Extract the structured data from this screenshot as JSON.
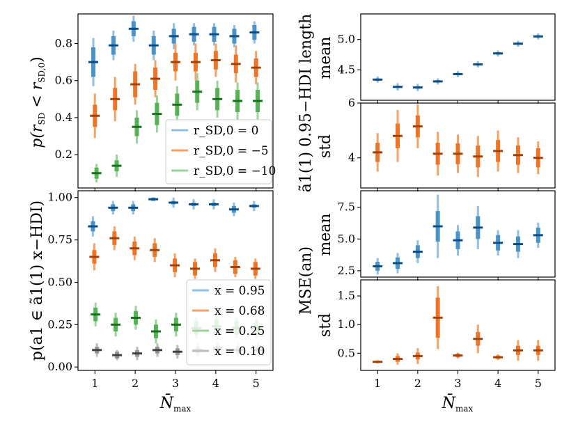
{
  "chart_data": [
    {
      "id": "A",
      "type": "scatter",
      "title": "",
      "xlabel": "",
      "ylabel": "p(r_SD < r_SD,0)",
      "ylim": [
        0.02,
        0.96
      ],
      "yticks": [
        0.2,
        0.4,
        0.6,
        0.8
      ],
      "ytick_labels": [
        "0.2",
        "0.4",
        "0.6",
        "0.8"
      ],
      "x": [
        1,
        1.5,
        2,
        2.5,
        3,
        3.5,
        4,
        4.5,
        5
      ],
      "series": [
        {
          "name": "r_SD,0 = 0",
          "color_key": "blue",
          "values": [
            0.7,
            0.79,
            0.88,
            0.79,
            0.84,
            0.85,
            0.85,
            0.84,
            0.86
          ],
          "inner": [
            0.08,
            0.05,
            0.04,
            0.05,
            0.04,
            0.04,
            0.04,
            0.04,
            0.04
          ],
          "outer": [
            0.13,
            0.08,
            0.07,
            0.08,
            0.07,
            0.06,
            0.06,
            0.06,
            0.06
          ]
        },
        {
          "name": "r_SD,0 = -5",
          "color_key": "orange",
          "values": [
            0.41,
            0.5,
            0.58,
            0.61,
            0.7,
            0.7,
            0.71,
            0.69,
            0.67
          ],
          "inner": [
            0.06,
            0.06,
            0.07,
            0.06,
            0.05,
            0.05,
            0.05,
            0.05,
            0.05
          ],
          "outer": [
            0.12,
            0.12,
            0.11,
            0.1,
            0.1,
            0.1,
            0.09,
            0.1,
            0.09
          ]
        },
        {
          "name": "r_SD,0 = -10",
          "color_key": "green",
          "values": [
            0.1,
            0.14,
            0.35,
            0.42,
            0.47,
            0.54,
            0.5,
            0.49,
            0.49
          ],
          "inner": [
            0.03,
            0.03,
            0.05,
            0.06,
            0.06,
            0.06,
            0.06,
            0.06,
            0.06
          ],
          "outer": [
            0.05,
            0.06,
            0.09,
            0.1,
            0.1,
            0.1,
            0.1,
            0.1,
            0.1
          ]
        }
      ]
    },
    {
      "id": "C",
      "type": "scatter",
      "xlabel": "N̄max",
      "ylabel": "p(a1 ∈ ã1(1) x−HDI)",
      "ylim": [
        -0.02,
        1.04
      ],
      "yticks": [
        0.0,
        0.25,
        0.5,
        0.75,
        1.0
      ],
      "ytick_labels": [
        "0.00",
        "0.25",
        "0.50",
        "0.75",
        "1.00"
      ],
      "xticks": [
        1,
        2,
        3,
        4,
        5
      ],
      "x": [
        1,
        1.5,
        2,
        2.5,
        3,
        3.5,
        4,
        4.5,
        5
      ],
      "series": [
        {
          "name": "x = 0.95",
          "color_key": "blue",
          "values": [
            0.83,
            0.94,
            0.94,
            0.99,
            0.97,
            0.96,
            0.96,
            0.93,
            0.95
          ],
          "inner": [
            0.03,
            0.02,
            0.02,
            0.01,
            0.01,
            0.01,
            0.01,
            0.02,
            0.01
          ],
          "outer": [
            0.06,
            0.04,
            0.04,
            0.01,
            0.03,
            0.03,
            0.03,
            0.04,
            0.03
          ]
        },
        {
          "name": "x = 0.68",
          "color_key": "orange",
          "values": [
            0.65,
            0.76,
            0.7,
            0.69,
            0.6,
            0.58,
            0.63,
            0.59,
            0.58
          ],
          "inner": [
            0.04,
            0.04,
            0.04,
            0.04,
            0.04,
            0.04,
            0.04,
            0.04,
            0.04
          ],
          "outer": [
            0.08,
            0.07,
            0.07,
            0.07,
            0.07,
            0.06,
            0.07,
            0.06,
            0.06
          ]
        },
        {
          "name": "x = 0.25",
          "color_key": "green",
          "values": [
            0.31,
            0.25,
            0.29,
            0.21,
            0.25,
            0.23,
            0.24,
            0.23,
            0.23
          ],
          "inner": [
            0.04,
            0.04,
            0.04,
            0.04,
            0.04,
            0.04,
            0.04,
            0.04,
            0.04
          ],
          "outer": [
            0.07,
            0.07,
            0.07,
            0.07,
            0.07,
            0.06,
            0.06,
            0.06,
            0.06
          ]
        },
        {
          "name": "x = 0.10",
          "color_key": "gray",
          "values": [
            0.1,
            0.07,
            0.08,
            0.1,
            0.09,
            0.1,
            0.11,
            0.1,
            0.1
          ],
          "inner": [
            0.02,
            0.02,
            0.02,
            0.02,
            0.02,
            0.02,
            0.02,
            0.02,
            0.02
          ],
          "outer": [
            0.04,
            0.03,
            0.04,
            0.04,
            0.04,
            0.04,
            0.04,
            0.04,
            0.04
          ]
        }
      ]
    },
    {
      "id": "B1",
      "type": "scatter",
      "ylabel": "mean",
      "group_ylabel": "ã1(1) 0.95−HDI length",
      "ylim": [
        4.0,
        5.42
      ],
      "yticks": [
        4.5,
        5.0
      ],
      "ytick_labels": [
        "4.5",
        "5.0"
      ],
      "x": [
        1,
        1.5,
        2,
        2.5,
        3,
        3.5,
        4,
        4.5,
        5
      ],
      "series": [
        {
          "name": "mean",
          "color_key": "blue",
          "values": [
            4.34,
            4.22,
            4.21,
            4.31,
            4.43,
            4.59,
            4.77,
            4.93,
            5.05
          ],
          "inner": [
            0.02,
            0.02,
            0.02,
            0.02,
            0.02,
            0.02,
            0.02,
            0.02,
            0.02
          ],
          "outer": [
            0.05,
            0.06,
            0.06,
            0.05,
            0.05,
            0.05,
            0.05,
            0.05,
            0.05
          ]
        }
      ]
    },
    {
      "id": "B2",
      "type": "scatter",
      "ylabel": "std",
      "ylim": [
        2.9,
        6.0
      ],
      "yticks": [
        4,
        6
      ],
      "ytick_labels": [
        "4",
        "6"
      ],
      "x": [
        1,
        1.5,
        2,
        2.5,
        3,
        3.5,
        4,
        4.5,
        5
      ],
      "series": [
        {
          "name": "std",
          "color_key": "orange",
          "values": [
            4.2,
            4.8,
            5.15,
            4.15,
            4.15,
            4.05,
            4.25,
            4.1,
            4.0
          ],
          "inner": [
            0.35,
            0.45,
            0.4,
            0.4,
            0.38,
            0.4,
            0.4,
            0.35,
            0.35
          ],
          "outer": [
            0.7,
            0.95,
            0.8,
            0.8,
            0.7,
            0.75,
            0.75,
            0.65,
            0.6
          ]
        }
      ]
    },
    {
      "id": "D1",
      "type": "scatter",
      "ylabel": "mean",
      "group_ylabel": "MSE(an)",
      "ylim": [
        2.0,
        8.8
      ],
      "yticks": [
        2.5,
        5.0,
        7.5
      ],
      "ytick_labels": [
        "2.5",
        "5.0",
        "7.5"
      ],
      "x": [
        1,
        1.5,
        2,
        2.5,
        3,
        3.5,
        4,
        4.5,
        5
      ],
      "series": [
        {
          "name": "mean",
          "color_key": "blue",
          "values": [
            2.85,
            3.1,
            4.0,
            6.0,
            4.9,
            5.9,
            4.7,
            4.6,
            5.3
          ],
          "inner": [
            0.35,
            0.45,
            0.5,
            1.2,
            0.7,
            0.9,
            0.6,
            0.6,
            0.6
          ],
          "outer": [
            0.65,
            0.8,
            0.9,
            2.5,
            1.2,
            1.7,
            1.0,
            1.1,
            1.0
          ]
        }
      ]
    },
    {
      "id": "D2",
      "type": "scatter",
      "ylabel": "std",
      "xlabel": "N̄max",
      "ylim": [
        0.2,
        1.78
      ],
      "yticks": [
        0.5,
        1.0,
        1.5
      ],
      "ytick_labels": [
        "0.5",
        "1.0",
        "1.5"
      ],
      "xticks": [
        1,
        2,
        3,
        4,
        5
      ],
      "x": [
        1,
        1.5,
        2,
        2.5,
        3,
        3.5,
        4,
        4.5,
        5
      ],
      "series": [
        {
          "name": "std",
          "color_key": "orange",
          "values": [
            0.35,
            0.4,
            0.45,
            1.12,
            0.46,
            0.75,
            0.43,
            0.55,
            0.55
          ],
          "inner": [
            0.02,
            0.05,
            0.06,
            0.35,
            0.03,
            0.12,
            0.03,
            0.08,
            0.08
          ],
          "outer": [
            0.03,
            0.1,
            0.14,
            0.55,
            0.05,
            0.25,
            0.05,
            0.18,
            0.18
          ]
        }
      ]
    }
  ],
  "colors": {
    "blue": {
      "light": "#90bfe0",
      "mid": "#4a93c8",
      "dark": "#0c4d86"
    },
    "orange": {
      "light": "#f5a266",
      "mid": "#ee7527",
      "dark": "#a34204"
    },
    "green": {
      "light": "#9dd29d",
      "mid": "#55b255",
      "dark": "#17711b"
    },
    "gray": {
      "light": "#bdbdbd",
      "mid": "#959595",
      "dark": "#3f3f3f"
    }
  },
  "labels": {
    "A_ylabel": "p(r",
    "A_ylabel_sub": "SD",
    "A_ylabel_mid": " < r",
    "A_ylabel_sub2": "SD,0",
    "A_ylabel_end": ")",
    "legendA": [
      "r_SD,0 = 0",
      "r_SD,0 = −5",
      "r_SD,0 = −10"
    ],
    "legendC": [
      "x = 0.95",
      "x = 0.68",
      "x = 0.25",
      "x = 0.10"
    ],
    "xlabel_main": "N̄",
    "xlabel_sub": "max",
    "xticks": [
      "1",
      "2",
      "3",
      "4",
      "5"
    ]
  }
}
